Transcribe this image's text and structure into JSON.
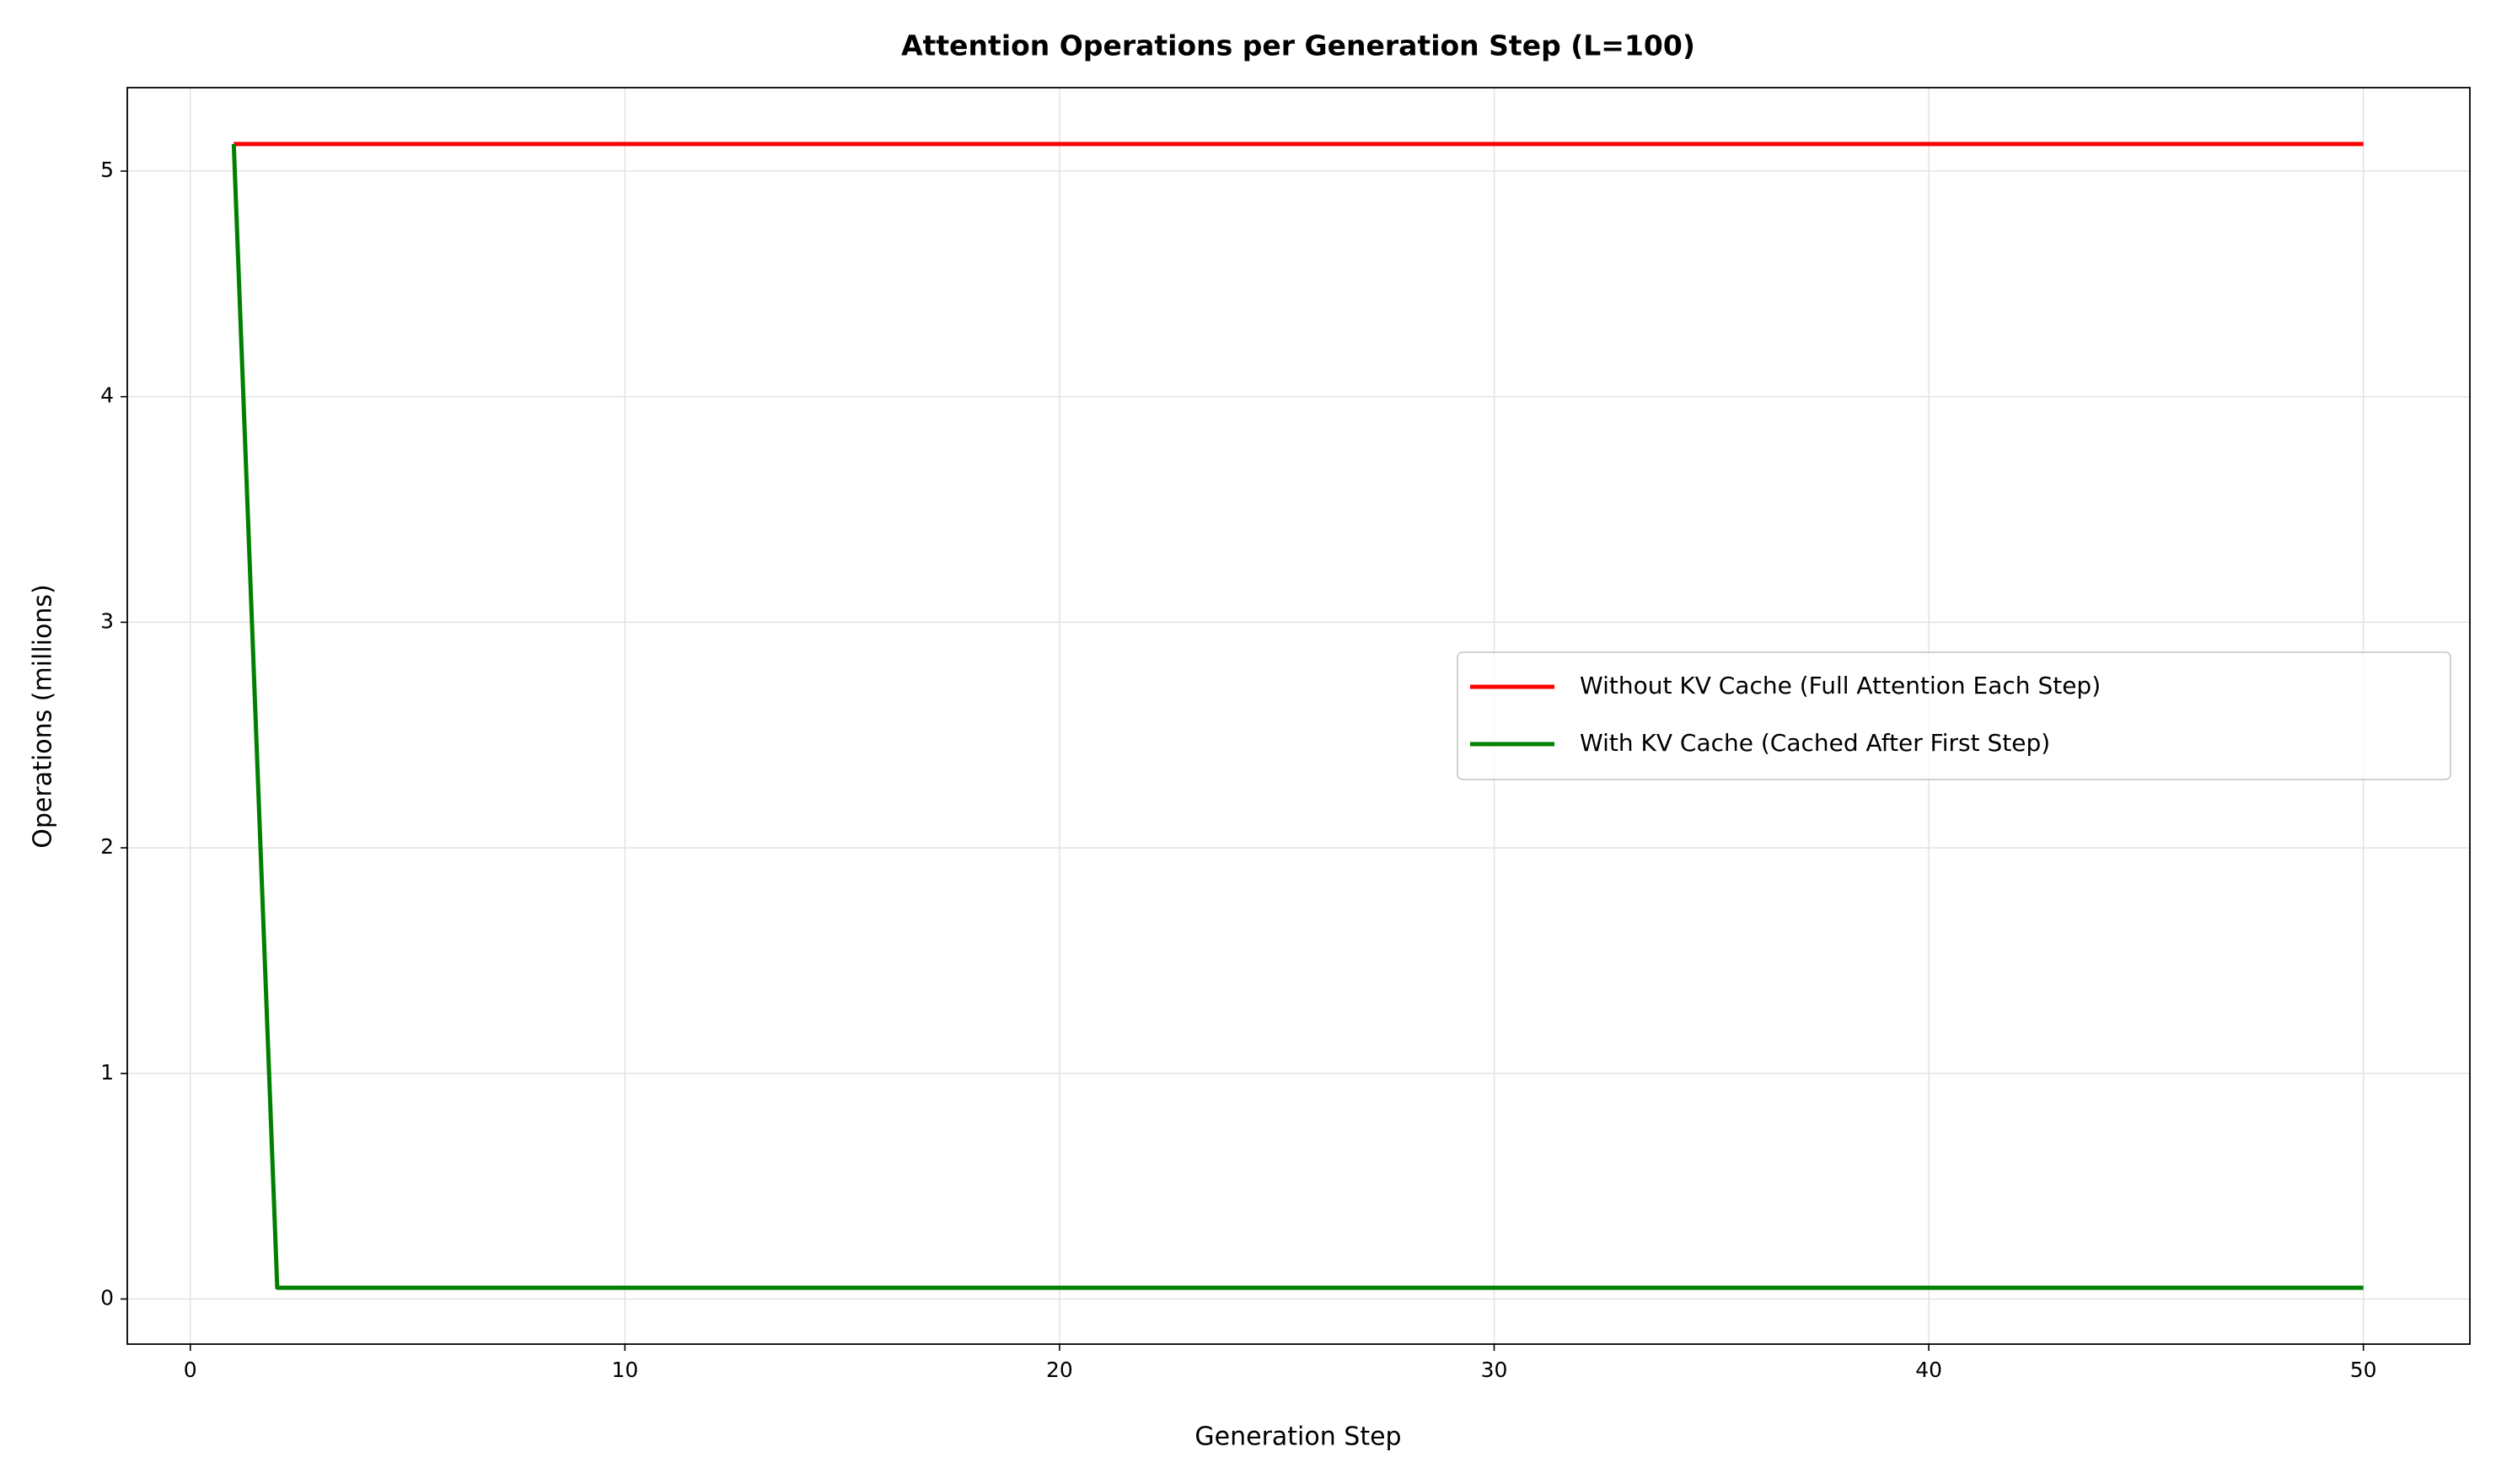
{
  "chart_data": {
    "type": "line",
    "title": "Attention Operations per Generation Step (L=100)",
    "xlabel": "Generation Step",
    "ylabel": "Operations (millions)",
    "x": [
      1,
      2,
      3,
      4,
      5,
      6,
      7,
      8,
      9,
      10,
      11,
      12,
      13,
      14,
      15,
      16,
      17,
      18,
      19,
      20,
      21,
      22,
      23,
      24,
      25,
      26,
      27,
      28,
      29,
      30,
      31,
      32,
      33,
      34,
      35,
      36,
      37,
      38,
      39,
      40,
      41,
      42,
      43,
      44,
      45,
      46,
      47,
      48,
      49,
      50
    ],
    "series": [
      {
        "name": "Without KV Cache (Full Attention Each Step)",
        "color": "#ff0000",
        "values": [
          5.12,
          5.12,
          5.12,
          5.12,
          5.12,
          5.12,
          5.12,
          5.12,
          5.12,
          5.12,
          5.12,
          5.12,
          5.12,
          5.12,
          5.12,
          5.12,
          5.12,
          5.12,
          5.12,
          5.12,
          5.12,
          5.12,
          5.12,
          5.12,
          5.12,
          5.12,
          5.12,
          5.12,
          5.12,
          5.12,
          5.12,
          5.12,
          5.12,
          5.12,
          5.12,
          5.12,
          5.12,
          5.12,
          5.12,
          5.12,
          5.12,
          5.12,
          5.12,
          5.12,
          5.12,
          5.12,
          5.12,
          5.12,
          5.12,
          5.12
        ]
      },
      {
        "name": "With KV Cache (Cached After First Step)",
        "color": "#008000",
        "values": [
          5.12,
          0.05,
          0.05,
          0.05,
          0.05,
          0.05,
          0.05,
          0.05,
          0.05,
          0.05,
          0.05,
          0.05,
          0.05,
          0.05,
          0.05,
          0.05,
          0.05,
          0.05,
          0.05,
          0.05,
          0.05,
          0.05,
          0.05,
          0.05,
          0.05,
          0.05,
          0.05,
          0.05,
          0.05,
          0.05,
          0.05,
          0.05,
          0.05,
          0.05,
          0.05,
          0.05,
          0.05,
          0.05,
          0.05,
          0.05,
          0.05,
          0.05,
          0.05,
          0.05,
          0.05,
          0.05,
          0.05,
          0.05,
          0.05,
          0.05
        ]
      }
    ],
    "xlim": [
      -1.45,
      52.45
    ],
    "xticks": [
      0,
      10,
      20,
      30,
      40,
      50
    ],
    "ylim": [
      -0.2,
      5.37
    ],
    "yticks": [
      0,
      1,
      2,
      3,
      4,
      5
    ],
    "grid": true,
    "legend": "center right"
  }
}
